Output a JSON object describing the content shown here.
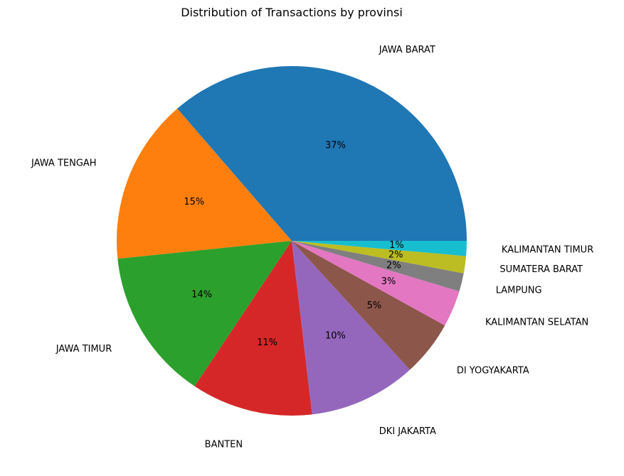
{
  "chart_data": {
    "type": "pie",
    "title": "Distribution of Transactions by provinsi",
    "start_angle_deg": 0,
    "direction": "counterclockwise",
    "slices": [
      {
        "label": "JAWA BARAT",
        "value": 36.6,
        "pct_label": "37%",
        "color": "#1f77b4"
      },
      {
        "label": "JAWA TENGAH",
        "value": 15.4,
        "pct_label": "15%",
        "color": "#ff7f0e"
      },
      {
        "label": "JAWA TIMUR",
        "value": 14.1,
        "pct_label": "14%",
        "color": "#2ca02c"
      },
      {
        "label": "BANTEN",
        "value": 11.3,
        "pct_label": "11%",
        "color": "#d62728"
      },
      {
        "label": "DKI JAKARTA",
        "value": 10.0,
        "pct_label": "10%",
        "color": "#9467bd"
      },
      {
        "label": "DI YOGYAKARTA",
        "value": 5.2,
        "pct_label": "5%",
        "color": "#8c564b"
      },
      {
        "label": "KALIMANTAN SELATAN",
        "value": 3.4,
        "pct_label": "3%",
        "color": "#e377c2"
      },
      {
        "label": "LAMPUNG",
        "value": 1.7,
        "pct_label": "2%",
        "color": "#7f7f7f"
      },
      {
        "label": "SUMATERA BARAT",
        "value": 1.6,
        "pct_label": "2%",
        "color": "#bcbd22"
      },
      {
        "label": "KALIMANTAN TIMUR",
        "value": 1.4,
        "pct_label": "1%",
        "color": "#17becf"
      }
    ]
  }
}
